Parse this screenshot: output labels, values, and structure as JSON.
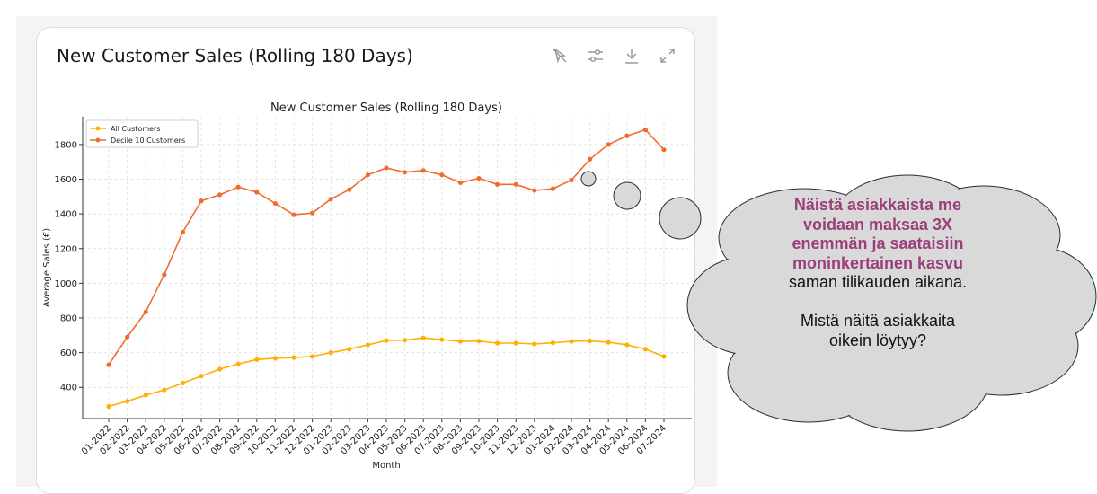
{
  "card": {
    "title": "New Customer Sales (Rolling 180 Days)",
    "toolbar": [
      {
        "name": "no-tooltip-icon"
      },
      {
        "name": "adjust-sliders-icon"
      },
      {
        "name": "download-icon"
      },
      {
        "name": "expand-icon"
      }
    ]
  },
  "chart_data": {
    "type": "line",
    "title": "New Customer Sales (Rolling 180 Days)",
    "xlabel": "Month",
    "ylabel": "Average Sales (€)",
    "ylim": [
      220,
      1960
    ],
    "yticks": [
      400,
      600,
      800,
      1000,
      1200,
      1400,
      1600,
      1800
    ],
    "grid": true,
    "legend_position": "top-left",
    "categories": [
      "01-2022",
      "02-2022",
      "03-2022",
      "04-2022",
      "05-2022",
      "06-2022",
      "07-2022",
      "08-2022",
      "09-2022",
      "10-2022",
      "11-2022",
      "12-2022",
      "01-2023",
      "02-2023",
      "03-2023",
      "04-2023",
      "05-2023",
      "06-2023",
      "07-2023",
      "08-2023",
      "09-2023",
      "10-2023",
      "11-2023",
      "12-2023",
      "01-2024",
      "02-2024",
      "03-2024",
      "04-2024",
      "05-2024",
      "06-2024",
      "07-2024"
    ],
    "series": [
      {
        "name": "All Customers",
        "color": "#ffb000",
        "values": [
          290,
          320,
          355,
          385,
          425,
          465,
          505,
          535,
          560,
          568,
          572,
          578,
          600,
          620,
          645,
          670,
          672,
          685,
          675,
          665,
          667,
          655,
          655,
          650,
          657,
          665,
          668,
          660,
          645,
          620,
          578
        ]
      },
      {
        "name": "Decile 10 Customers",
        "color": "#f26b2d",
        "values": [
          530,
          690,
          835,
          1050,
          1295,
          1475,
          1510,
          1555,
          1525,
          1460,
          1395,
          1405,
          1485,
          1540,
          1625,
          1665,
          1640,
          1650,
          1625,
          1580,
          1605,
          1570,
          1570,
          1535,
          1545,
          1595,
          1715,
          1800,
          1850,
          1885,
          1770
        ]
      }
    ]
  },
  "callout": {
    "highlight_lines": [
      "Näistä asiakkaista me",
      "voidaan maksaa 3X",
      "enemmän ja saataisiin",
      "moninkertainen kasvu"
    ],
    "line5": "saman tilikauden aikana.",
    "question_line1": "Mistä näitä asiakkaita",
    "question_line2": "oikein löytyy?",
    "fill": "#d9d9d9",
    "stroke": "#1f2f3f"
  }
}
